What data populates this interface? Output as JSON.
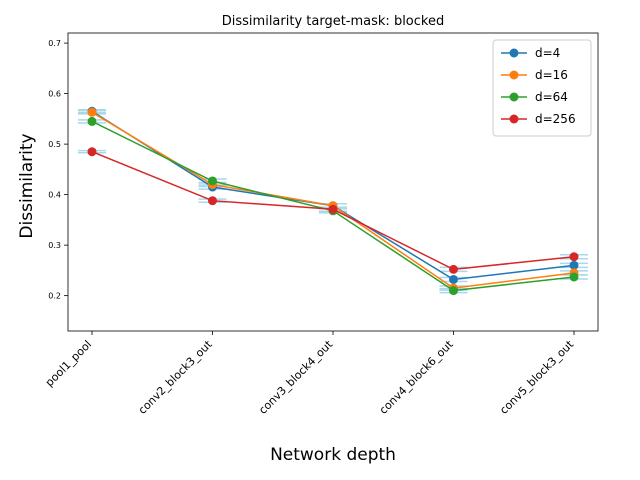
{
  "chart_data": {
    "type": "line",
    "title": "Dissimilarity target-mask: blocked",
    "xlabel": "Network depth",
    "ylabel": "Dissimilarity",
    "categories": [
      "pool1_pool",
      "conv2_block3_out",
      "conv3_block4_out",
      "conv4_block6_out",
      "conv5_block3_out"
    ],
    "ylim": [
      0.13,
      0.72
    ],
    "yticks": [
      0.2,
      0.3,
      0.4,
      0.5,
      0.6,
      0.7
    ],
    "legend_placement": "top-right",
    "grid": false,
    "error_color": "#a8d8ea",
    "series": [
      {
        "name": "d=4",
        "color": "#1f77b4",
        "values": [
          0.565,
          0.415,
          0.378,
          0.232,
          0.26
        ],
        "err": [
          0.003,
          0.004,
          0.004,
          0.004,
          0.004
        ]
      },
      {
        "name": "d=16",
        "color": "#ff7f0e",
        "values": [
          0.563,
          0.42,
          0.378,
          0.215,
          0.245
        ],
        "err": [
          0.003,
          0.004,
          0.004,
          0.004,
          0.004
        ]
      },
      {
        "name": "d=64",
        "color": "#2ca02c",
        "values": [
          0.545,
          0.427,
          0.368,
          0.21,
          0.237
        ],
        "err": [
          0.003,
          0.004,
          0.004,
          0.004,
          0.004
        ]
      },
      {
        "name": "d=256",
        "color": "#d62728",
        "values": [
          0.485,
          0.388,
          0.371,
          0.252,
          0.277
        ],
        "err": [
          0.002,
          0.003,
          0.004,
          0.004,
          0.004
        ]
      }
    ]
  }
}
